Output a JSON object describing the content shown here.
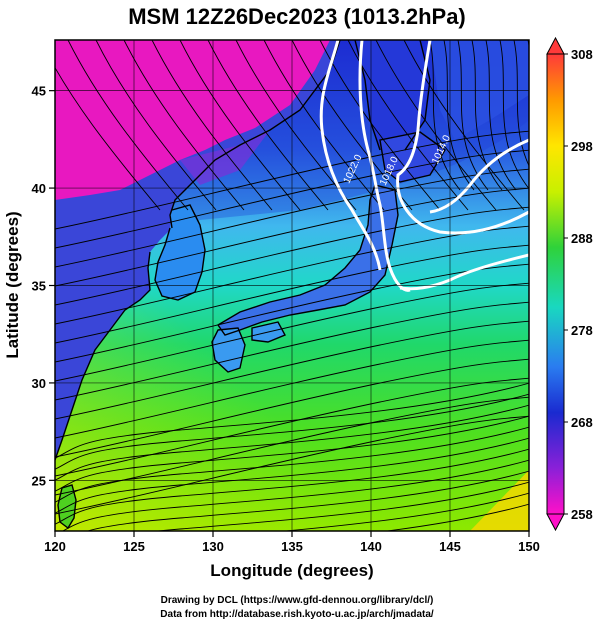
{
  "map": {
    "title": "MSM 12Z26Dec2023 (1013.2hPa)",
    "x_axis_label": "Longitude (degrees)",
    "y_axis_label": "Latitude  (degrees)",
    "x_ticks": [
      "120",
      "125",
      "130",
      "135",
      "140",
      "145",
      "150"
    ],
    "y_ticks": [
      "25",
      "30",
      "35",
      "40",
      "45"
    ],
    "lon_range": [
      120,
      150
    ],
    "lat_range": [
      22.4,
      47.6
    ],
    "lon_tick_values": [
      120,
      125,
      130,
      135,
      140,
      145,
      150
    ],
    "lat_tick_values": [
      25,
      30,
      35,
      40,
      45
    ],
    "colorbar": {
      "labels": [
        "308",
        "298",
        "288",
        "278",
        "268",
        "258"
      ],
      "values": [
        308,
        298,
        288,
        278,
        268,
        258
      ],
      "range": [
        258,
        308
      ],
      "colors": [
        "#ff3a3a",
        "#ff9a00",
        "#ffe600",
        "#c8f000",
        "#2fd23a",
        "#19d8c0",
        "#2a7cf0",
        "#1a2ad0",
        "#8a20d8",
        "#ff10c8"
      ]
    },
    "isobars": [
      {
        "label": "1022.0",
        "lon": 138.6,
        "lat": 40.2
      },
      {
        "label": "1018.0",
        "lon": 140.9,
        "lat": 40.1
      },
      {
        "label": "1014.0",
        "lon": 144.2,
        "lat": 41.2
      }
    ]
  },
  "credits": {
    "line1": "Drawing by DCL (https://www.gfd-dennou.org/library/dcl/)",
    "line2": "Data from http://database.rish.kyoto-u.ac.jp/arch/jmadata/"
  }
}
